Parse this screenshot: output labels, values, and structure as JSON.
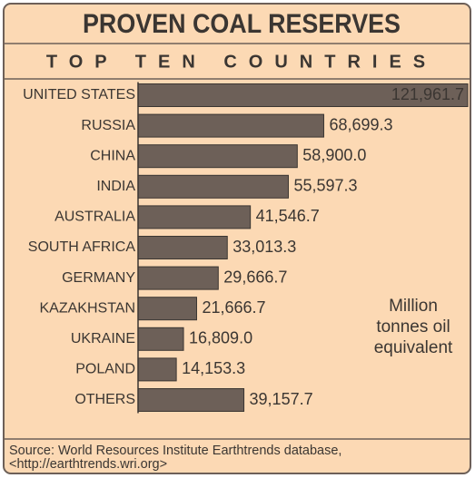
{
  "chart_data": {
    "type": "bar",
    "orientation": "horizontal",
    "title": "PROVEN COAL RESERVES",
    "subtitle": "TOP TEN COUNTRIES",
    "categories": [
      "UNITED STATES",
      "RUSSIA",
      "CHINA",
      "INDIA",
      "AUSTRALIA",
      "SOUTH AFRICA",
      "GERMANY",
      "KAZAKHSTAN",
      "UKRAINE",
      "POLAND",
      "OTHERS"
    ],
    "values": [
      121961.7,
      68699.3,
      58900.0,
      55597.3,
      41546.7,
      33013.3,
      29666.7,
      21666.7,
      16809.0,
      14153.3,
      39157.7
    ],
    "value_labels": [
      "121,961.7",
      "68,699.3",
      "58,900.0",
      "55,597.3",
      "41,546.7",
      "33,013.3",
      "29,666.7",
      "21,666.7",
      "16,809.0",
      "14,153.3",
      "39,157.7"
    ],
    "color": "#6d6058",
    "annotation": [
      "Million",
      "tonnes oil",
      "equivalent"
    ],
    "source": [
      "Source: World Resources Institute Earthtrends database,",
      "<http://earthtrends.wri.org>"
    ]
  }
}
